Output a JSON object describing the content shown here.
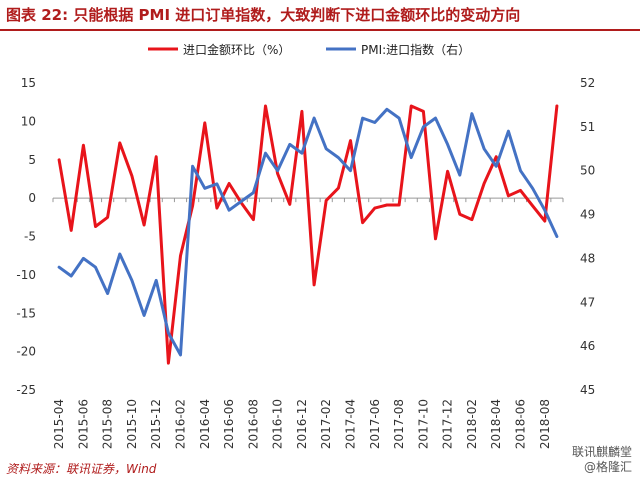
{
  "figure": {
    "title": "图表 22: 只能根据 PMI 进口订单指数，大致判断下进口金额环比的变动方向",
    "source": "资料来源：联讯证券，Wind",
    "watermark_line1": "联讯麒麟堂",
    "watermark_line2": "@格隆汇"
  },
  "chart_data": {
    "type": "line",
    "x": [
      "2015-04",
      "2015-05",
      "2015-06",
      "2015-07",
      "2015-08",
      "2015-09",
      "2015-10",
      "2015-11",
      "2015-12",
      "2016-01",
      "2016-02",
      "2016-03",
      "2016-04",
      "2016-05",
      "2016-06",
      "2016-07",
      "2016-08",
      "2016-09",
      "2016-10",
      "2016-11",
      "2016-12",
      "2017-01",
      "2017-02",
      "2017-03",
      "2017-04",
      "2017-05",
      "2017-06",
      "2017-07",
      "2017-08",
      "2017-09",
      "2017-10",
      "2017-11",
      "2017-12",
      "2018-01",
      "2018-02",
      "2018-03",
      "2018-04",
      "2018-05",
      "2018-06",
      "2018-07",
      "2018-08",
      "2018-09"
    ],
    "x_tick_labels": [
      "2015-04",
      "2015-06",
      "2015-08",
      "2015-10",
      "2015-12",
      "2016-02",
      "2016-04",
      "2016-06",
      "2016-08",
      "2016-10",
      "2016-12",
      "2017-02",
      "2017-04",
      "2017-06",
      "2017-08",
      "2017-10",
      "2017-12",
      "2018-02",
      "2018-04",
      "2018-06",
      "2018-08"
    ],
    "left_axis": {
      "ylim": [
        -25,
        15
      ],
      "ticks": [
        "15",
        "10",
        "5",
        "0",
        "-5",
        "-10",
        "-15",
        "-20",
        "-25"
      ]
    },
    "right_axis": {
      "ylim": [
        45,
        52
      ],
      "ticks": [
        "52",
        "51",
        "50",
        "49",
        "48",
        "47",
        "46",
        "45"
      ]
    },
    "series": [
      {
        "name": "进口金额环比（%）",
        "axis": "left",
        "color": "#e8141b",
        "values": [
          5,
          -4.2,
          6.9,
          -3.7,
          -2.5,
          7.2,
          2.9,
          -3.5,
          5.4,
          -21.5,
          -7.5,
          -1,
          9.8,
          -1.3,
          1.9,
          -0.6,
          -2.8,
          12,
          3.2,
          -0.8,
          11.3,
          -11.3,
          -0.3,
          1.3,
          7.5,
          -3.2,
          -1.3,
          -0.9,
          -0.9,
          12,
          11.3,
          -5.3,
          3.5,
          -2.1,
          -2.8,
          1.9,
          5.4,
          0.3,
          1,
          -1,
          -3,
          12
        ]
      },
      {
        "name": "PMI:进口指数（右）",
        "axis": "right",
        "color": "#4472c4",
        "values": [
          47.8,
          47.6,
          48,
          47.8,
          47.2,
          48.1,
          47.5,
          46.7,
          47.5,
          46.3,
          45.8,
          50.1,
          49.6,
          49.7,
          49.1,
          49.3,
          49.5,
          50.4,
          50,
          50.6,
          50.4,
          51.2,
          50.5,
          50.3,
          50,
          51.2,
          51.1,
          51.4,
          51.2,
          50.3,
          51,
          51.2,
          50.6,
          49.9,
          51.3,
          50.5,
          50.1,
          50.9,
          50,
          49.6,
          49.1,
          48.5
        ]
      }
    ]
  }
}
